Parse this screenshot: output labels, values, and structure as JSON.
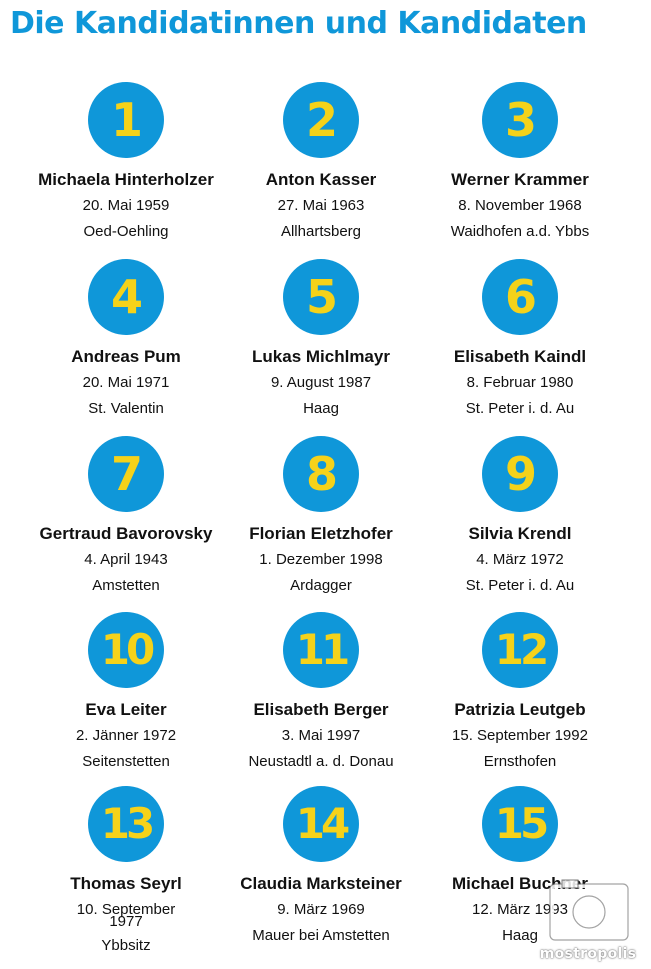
{
  "header": {
    "title": "Die Kandidatinnen und Kandidaten"
  },
  "colors": {
    "badge": "#0f97d9",
    "number": "#f5d21a",
    "title": "#0f97d9"
  },
  "candidates": [
    {
      "number": "1",
      "name": "Michaela Hinterholzer",
      "date": "20. Mai 1959",
      "place": "Oed-Oehling"
    },
    {
      "number": "2",
      "name": "Anton Kasser",
      "date": "27. Mai 1963",
      "place": "Allhartsberg"
    },
    {
      "number": "3",
      "name": "Werner Krammer",
      "date": "8. November 1968",
      "place": "Waidhofen a.d. Ybbs"
    },
    {
      "number": "4",
      "name": "Andreas Pum",
      "date": "20. Mai 1971",
      "place": "St. Valentin"
    },
    {
      "number": "5",
      "name": "Lukas Michlmayr",
      "date": "9. August 1987",
      "place": "Haag"
    },
    {
      "number": "6",
      "name": "Elisabeth Kaindl",
      "date": "8. Februar 1980",
      "place": "St. Peter i. d. Au"
    },
    {
      "number": "7",
      "name": "Gertraud Bavorovsky",
      "date": "4. April 1943",
      "place": "Amstetten"
    },
    {
      "number": "8",
      "name": "Florian Eletzhofer",
      "date": "1. Dezember 1998",
      "place": "Ardagger"
    },
    {
      "number": "9",
      "name": "Silvia Krendl",
      "date": "4. März 1972",
      "place": "St. Peter i. d. Au"
    },
    {
      "number": "10",
      "name": "Eva Leiter",
      "date": "2. Jänner 1972",
      "place": "Seitenstetten"
    },
    {
      "number": "11",
      "name": "Elisabeth Berger",
      "date": "3. Mai 1997",
      "place": "Neustadtl a. d. Donau"
    },
    {
      "number": "12",
      "name": "Patrizia Leutgeb",
      "date": "15. September 1992",
      "place": "Ernsthofen"
    },
    {
      "number": "13",
      "name": "Thomas Seyrl",
      "date": "10. September",
      "date_overflow": "1977",
      "place": "Ybbsitz"
    },
    {
      "number": "14",
      "name": "Claudia Marksteiner",
      "date": "9. März 1969",
      "place": "Mauer bei Amstetten"
    },
    {
      "number": "15",
      "name": "Michael Buchner",
      "date": "12. März 1993",
      "place": "Haag"
    }
  ],
  "watermark": {
    "text": "mostropolis",
    "icon": "camera-icon"
  }
}
